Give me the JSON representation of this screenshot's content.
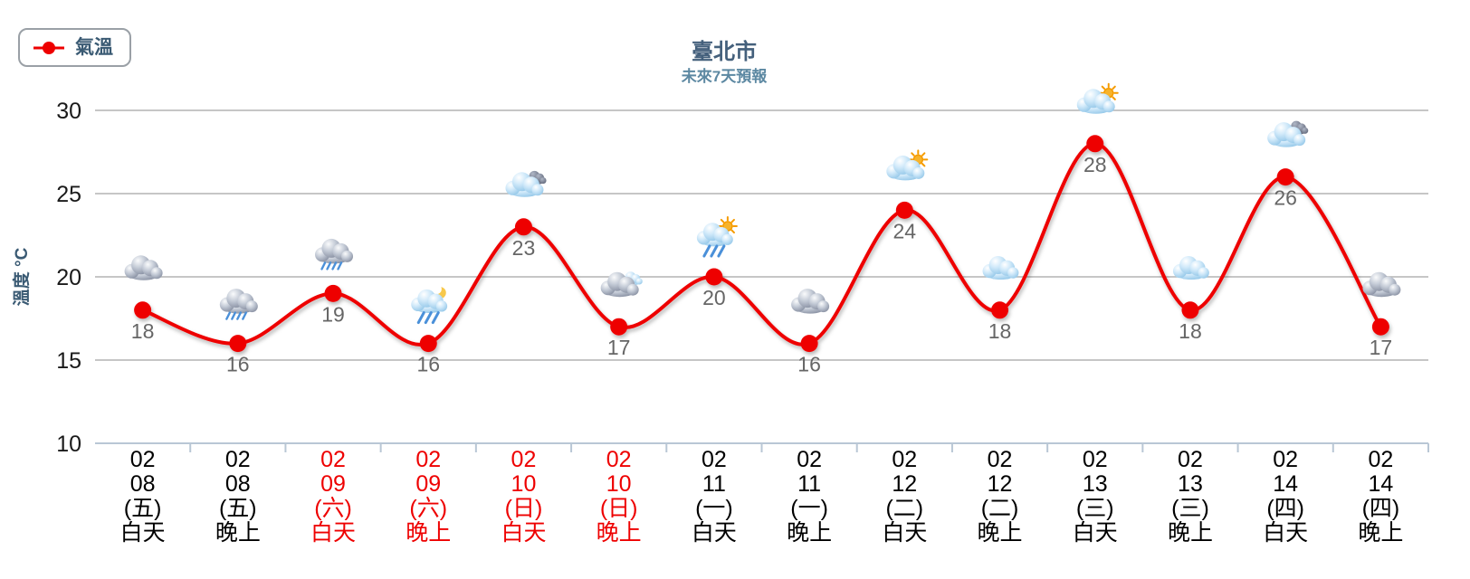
{
  "legend": {
    "label": "氣溫"
  },
  "header": {
    "title": "臺北市",
    "subtitle": "未來7天預報"
  },
  "chart_data": {
    "type": "line",
    "title": "臺北市",
    "subtitle": "未來7天預報",
    "ylabel": "溫度 °C",
    "y_ticks": [
      30,
      25,
      20,
      15,
      10
    ],
    "ylim": [
      10,
      32
    ],
    "grid": true,
    "legend_position": "top-left",
    "series": [
      {
        "name": "氣溫",
        "values": [
          18,
          16,
          19,
          16,
          23,
          17,
          20,
          16,
          24,
          18,
          28,
          18,
          26,
          17
        ]
      }
    ],
    "categories": [
      {
        "lines": [
          "02",
          "08",
          "(五)",
          "白天"
        ],
        "weekend": false
      },
      {
        "lines": [
          "02",
          "08",
          "(五)",
          "晚上"
        ],
        "weekend": false
      },
      {
        "lines": [
          "02",
          "09",
          "(六)",
          "白天"
        ],
        "weekend": true
      },
      {
        "lines": [
          "02",
          "09",
          "(六)",
          "晚上"
        ],
        "weekend": true
      },
      {
        "lines": [
          "02",
          "10",
          "(日)",
          "白天"
        ],
        "weekend": true
      },
      {
        "lines": [
          "02",
          "10",
          "(日)",
          "晚上"
        ],
        "weekend": true
      },
      {
        "lines": [
          "02",
          "11",
          "(一)",
          "白天"
        ],
        "weekend": false
      },
      {
        "lines": [
          "02",
          "11",
          "(一)",
          "晚上"
        ],
        "weekend": false
      },
      {
        "lines": [
          "02",
          "12",
          "(二)",
          "白天"
        ],
        "weekend": false
      },
      {
        "lines": [
          "02",
          "12",
          "(二)",
          "晚上"
        ],
        "weekend": false
      },
      {
        "lines": [
          "02",
          "13",
          "(三)",
          "白天"
        ],
        "weekend": false
      },
      {
        "lines": [
          "02",
          "13",
          "(三)",
          "晚上"
        ],
        "weekend": false
      },
      {
        "lines": [
          "02",
          "14",
          "(四)",
          "白天"
        ],
        "weekend": false
      },
      {
        "lines": [
          "02",
          "14",
          "(四)",
          "晚上"
        ],
        "weekend": false
      }
    ],
    "icons": [
      "overcast",
      "rain",
      "rain",
      "night-rain",
      "mostly-cloudy",
      "night-cloudy",
      "sun-shower",
      "overcast",
      "partly-sunny",
      "cloudy",
      "partly-sunny",
      "cloudy",
      "mostly-cloudy",
      "overcast"
    ],
    "colors": {
      "line": "#ee0000",
      "point": "#ee0000",
      "value_label": "#666666",
      "weekend_label": "#ee0000",
      "weekday_label": "#000000",
      "y_tick_label": "#1a1a1a",
      "grid": "#b3b3b3",
      "axis": "#b9c7d5",
      "title": "#44607c",
      "subtitle": "#5c88a2",
      "legend_text": "#3a5a73",
      "ylabel": "#3a5a73",
      "rain": "#4a90d9",
      "sun": "#f59b00",
      "moon": "#f7c84b"
    }
  }
}
